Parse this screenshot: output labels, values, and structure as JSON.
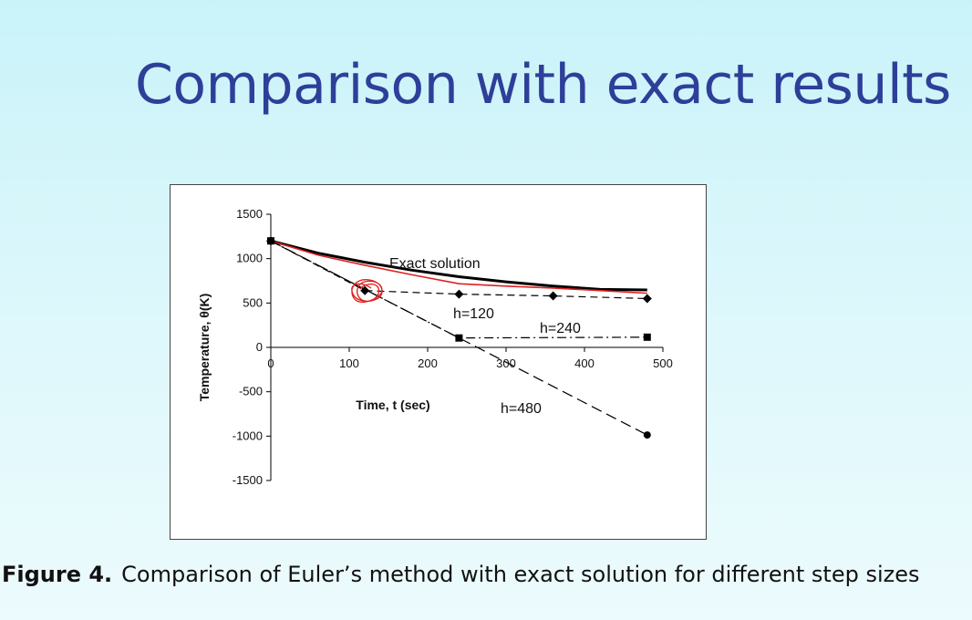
{
  "slide": {
    "title": "Comparison with exact results"
  },
  "caption": {
    "label": "Figure 4.",
    "text": "Comparison of Euler’s method with exact solution for different step sizes"
  },
  "chart_data": {
    "type": "line",
    "xlabel": "Time, t (sec)",
    "ylabel": "Temperature, θ(K)",
    "xlim": [
      0,
      500
    ],
    "ylim": [
      -1500,
      1500
    ],
    "xticks": [
      0,
      100,
      200,
      300,
      400,
      500
    ],
    "yticks": [
      1500,
      1000,
      500,
      0,
      -500,
      -1000,
      -1500
    ],
    "grid": false,
    "legend": "none",
    "series": [
      {
        "name": "Exact solution",
        "style": "solid",
        "color": "#000000",
        "x": [
          0,
          60,
          120,
          180,
          240,
          300,
          360,
          420,
          480
        ],
        "y": [
          1200,
          1063,
          959,
          870,
          796,
          738,
          691,
          654,
          647
        ]
      },
      {
        "style": "solid",
        "color": "#e02020",
        "x": [
          0,
          60,
          120,
          180,
          240,
          300,
          360,
          420,
          480
        ],
        "y": [
          1200,
          1040,
          925,
          818,
          717,
          690,
          668,
          640,
          610
        ]
      },
      {
        "name": "h=120",
        "style": "dashed",
        "marker": "diamond",
        "color": "#000000",
        "x": [
          0,
          120,
          240,
          360,
          480
        ],
        "y": [
          1200,
          640,
          600,
          580,
          550
        ]
      },
      {
        "name": "h=240",
        "style": "dashdot",
        "marker": "square",
        "color": "#000000",
        "x": [
          0,
          240,
          480
        ],
        "y": [
          1200,
          106,
          115
        ]
      },
      {
        "name": "h=480",
        "style": "longdash",
        "marker": "circle",
        "color": "#000000",
        "x": [
          0,
          480
        ],
        "y": [
          1200,
          -987
        ]
      }
    ],
    "annotations": [
      "Exact solution",
      "h=120",
      "h=240",
      "h=480"
    ]
  },
  "colors": {
    "title": "#2e3f99",
    "annotation_scribble": "#e02020"
  }
}
